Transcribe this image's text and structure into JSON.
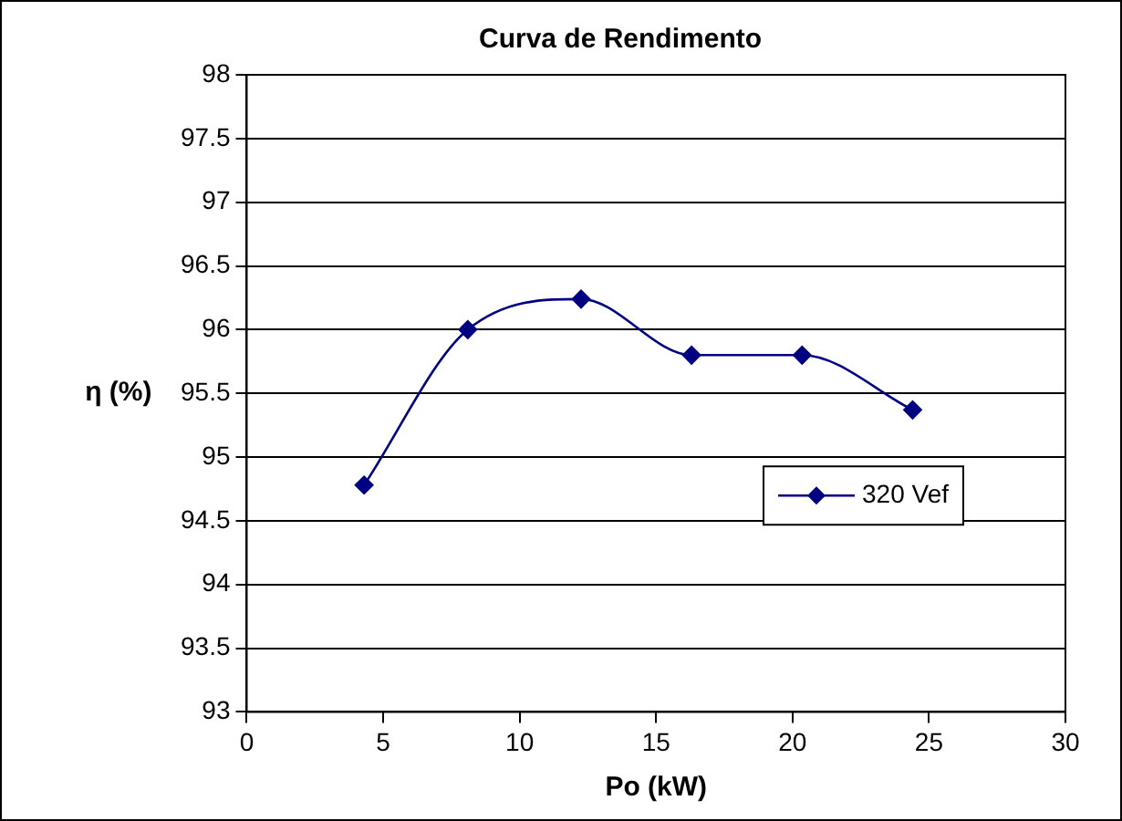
{
  "chart_data": {
    "type": "line",
    "title": "Curva de Rendimento",
    "xlabel": "Po (kW)",
    "ylabel": "η (%)",
    "x": [
      4.3,
      8.1,
      12.25,
      16.3,
      20.35,
      24.4
    ],
    "series": [
      {
        "name": "320 Vef",
        "color": "#000080",
        "values": [
          94.78,
          96.0,
          96.24,
          95.8,
          95.8,
          95.37
        ]
      }
    ],
    "xlim": [
      0,
      30
    ],
    "xticks": [
      0,
      5,
      10,
      15,
      20,
      25,
      30
    ],
    "ylim": [
      93,
      98
    ],
    "yticks": [
      93,
      93.5,
      94,
      94.5,
      95,
      95.5,
      96,
      96.5,
      97,
      97.5,
      98
    ],
    "grid": "y",
    "legend": "right",
    "marker": "diamond",
    "line_style": "solid"
  }
}
